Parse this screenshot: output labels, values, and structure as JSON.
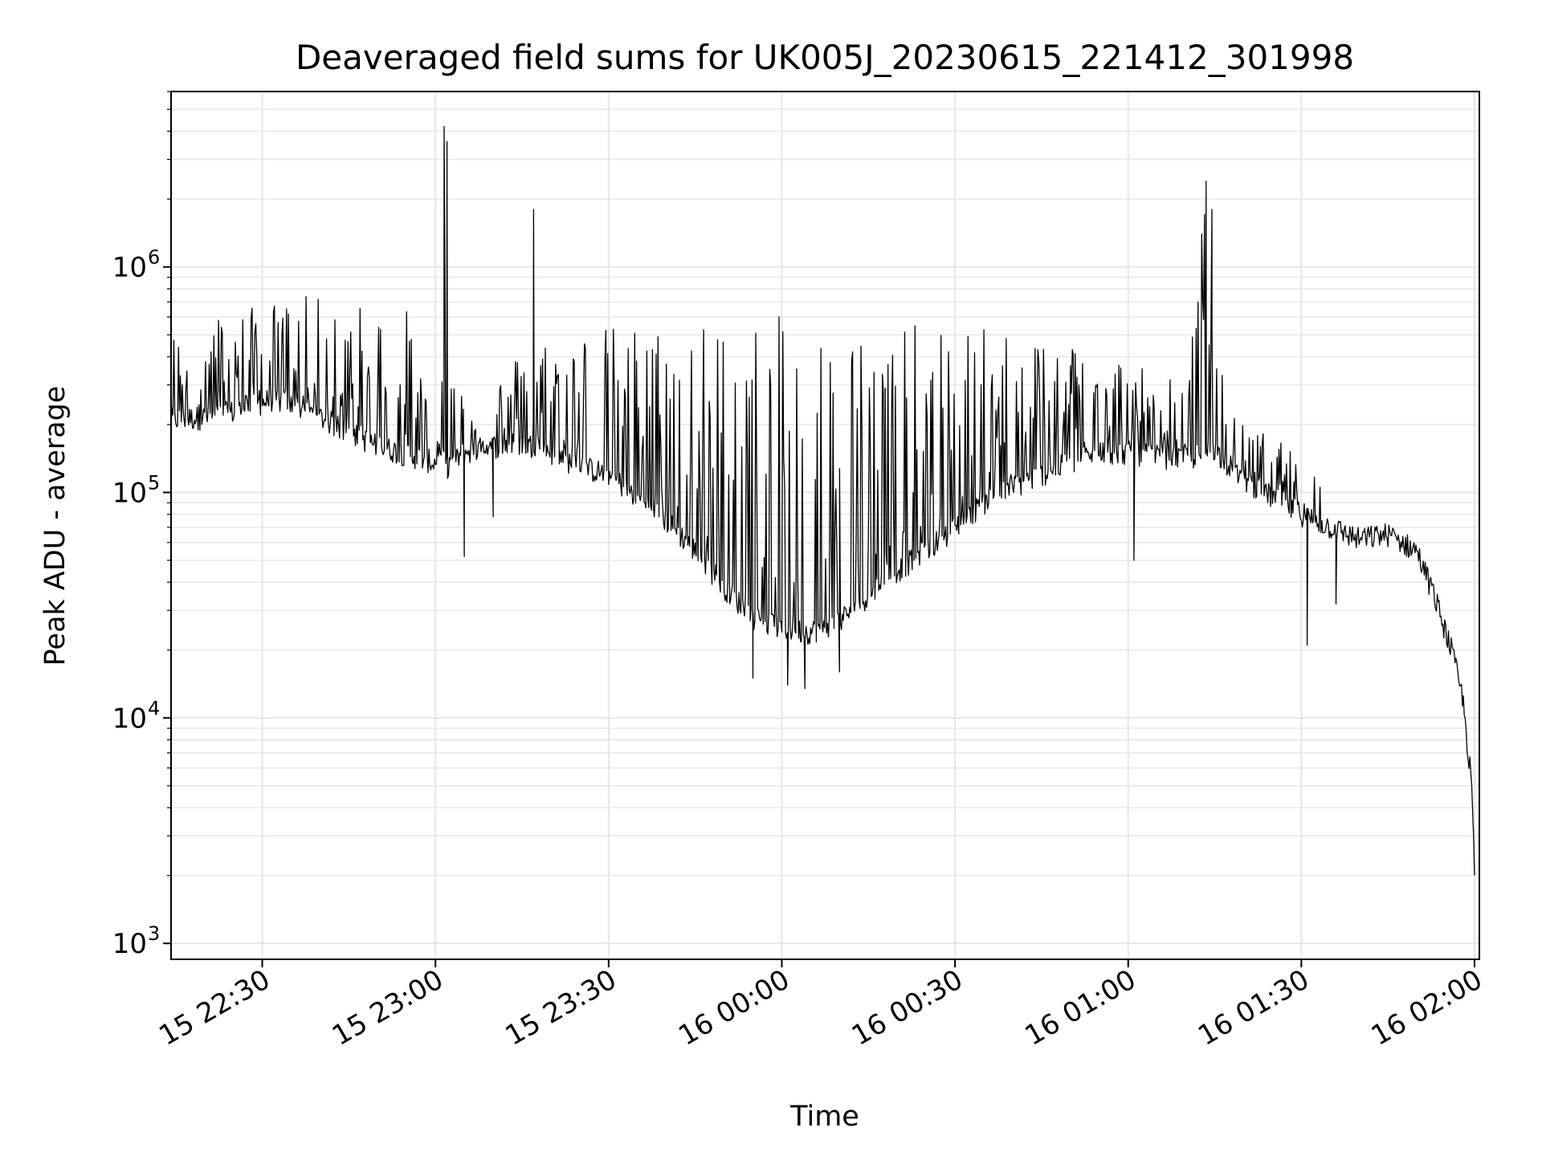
{
  "chart_data": {
    "type": "line",
    "title": "Deaveraged field sums for UK005J_20230615_221412_301998",
    "xlabel": "Time",
    "ylabel": "Peak ADU - average",
    "yscale": "log",
    "ylim": [
      850,
      6000000
    ],
    "xlim": [
      "2023-06-15 22:14:12",
      "2023-06-16 02:00:00"
    ],
    "grid": true,
    "line_color": "#000000",
    "grid_color": "#e6e6e6",
    "x_ticks": [
      {
        "value": "2023-06-15 22:30:00",
        "label": "15 22:30"
      },
      {
        "value": "2023-06-15 23:00:00",
        "label": "15 23:00"
      },
      {
        "value": "2023-06-15 23:30:00",
        "label": "15 23:30"
      },
      {
        "value": "2023-06-16 00:00:00",
        "label": "16 00:00"
      },
      {
        "value": "2023-06-16 00:30:00",
        "label": "16 00:30"
      },
      {
        "value": "2023-06-16 01:00:00",
        "label": "16 01:00"
      },
      {
        "value": "2023-06-16 01:30:00",
        "label": "16 01:30"
      },
      {
        "value": "2023-06-16 02:00:00",
        "label": "16 02:00"
      }
    ],
    "y_ticks": [
      {
        "value": 1000,
        "base": "10",
        "exp": "3"
      },
      {
        "value": 10000,
        "base": "10",
        "exp": "4"
      },
      {
        "value": 100000,
        "base": "10",
        "exp": "5"
      },
      {
        "value": 1000000,
        "base": "10",
        "exp": "6"
      }
    ],
    "series": [
      {
        "x": [
          "2023-06-15 22:14:12",
          "2023-06-15 22:20:00",
          "2023-06-15 22:26:00",
          "2023-06-15 22:32:00",
          "2023-06-15 22:38:00",
          "2023-06-15 22:44:00",
          "2023-06-15 22:50:00",
          "2023-06-15 22:56:00",
          "2023-06-15 23:00:00",
          "2023-06-15 23:01:30",
          "2023-06-15 23:02:00",
          "2023-06-15 23:05:00",
          "2023-06-15 23:10:00",
          "2023-06-15 23:15:00",
          "2023-06-15 23:17:00",
          "2023-06-15 23:17:30",
          "2023-06-15 23:20:00",
          "2023-06-15 23:25:00",
          "2023-06-15 23:30:00",
          "2023-06-15 23:35:00",
          "2023-06-15 23:40:00",
          "2023-06-15 23:45:00",
          "2023-06-15 23:50:00",
          "2023-06-15 23:55:00",
          "2023-06-16 00:00:00",
          "2023-06-16 00:05:00",
          "2023-06-16 00:10:00",
          "2023-06-16 00:15:00",
          "2023-06-16 00:20:00",
          "2023-06-16 00:25:00",
          "2023-06-16 00:30:00",
          "2023-06-16 00:35:00",
          "2023-06-16 00:40:00",
          "2023-06-16 00:45:00",
          "2023-06-16 00:50:00",
          "2023-06-16 00:55:00",
          "2023-06-16 01:00:00",
          "2023-06-16 01:05:00",
          "2023-06-16 01:10:00",
          "2023-06-16 01:13:30",
          "2023-06-16 01:14:30",
          "2023-06-16 01:17:00",
          "2023-06-16 01:20:00",
          "2023-06-16 01:25:00",
          "2023-06-16 01:30:00",
          "2023-06-16 01:35:00",
          "2023-06-16 01:40:00",
          "2023-06-16 01:45:00",
          "2023-06-16 01:50:00",
          "2023-06-16 01:53:00",
          "2023-06-16 01:56:00",
          "2023-06-16 01:58:00",
          "2023-06-16 01:59:30",
          "2023-06-16 02:00:00"
        ],
        "baseline": [
          210000,
          215000,
          230000,
          260000,
          230000,
          190000,
          160000,
          145000,
          135000,
          140000,
          130000,
          150000,
          160000,
          165000,
          160000,
          170000,
          150000,
          130000,
          120000,
          95000,
          75000,
          55000,
          38000,
          28000,
          25000,
          24000,
          27000,
          35000,
          45000,
          55000,
          70000,
          90000,
          105000,
          120000,
          135000,
          150000,
          150000,
          145000,
          140000,
          150000,
          160000,
          135000,
          115000,
          95000,
          80000,
          70000,
          62000,
          65000,
          55000,
          35000,
          20000,
          12000,
          5000,
          2000
        ],
        "peaks": [
          520000,
          600000,
          650000,
          700000,
          750000,
          700000,
          680000,
          650000,
          150000,
          4200000,
          3600000,
          230000,
          300000,
          450000,
          1800000,
          480000,
          500000,
          540000,
          550000,
          560000,
          570000,
          580000,
          590000,
          600000,
          610000,
          590000,
          570000,
          560000,
          560000,
          550000,
          550000,
          540000,
          530000,
          520000,
          500000,
          460000,
          400000,
          350000,
          300000,
          2400000,
          1800000,
          230000,
          200000,
          180000,
          140000,
          110000,
          75000,
          70000,
          60000,
          40000,
          22000,
          14000,
          6000,
          2600
        ]
      }
    ],
    "dips": [
      {
        "time": "2023-06-15 23:05:00",
        "value": 52000
      },
      {
        "time": "2023-06-15 23:10:00",
        "value": 78000
      },
      {
        "time": "2023-06-15 23:55:00",
        "value": 15000
      },
      {
        "time": "2023-06-16 00:01:00",
        "value": 14000
      },
      {
        "time": "2023-06-16 00:04:00",
        "value": 13500
      },
      {
        "time": "2023-06-16 00:10:00",
        "value": 16000
      },
      {
        "time": "2023-06-16 01:01:00",
        "value": 50000
      },
      {
        "time": "2023-06-16 01:31:00",
        "value": 21000
      },
      {
        "time": "2023-06-16 01:36:00",
        "value": 32000
      }
    ]
  }
}
